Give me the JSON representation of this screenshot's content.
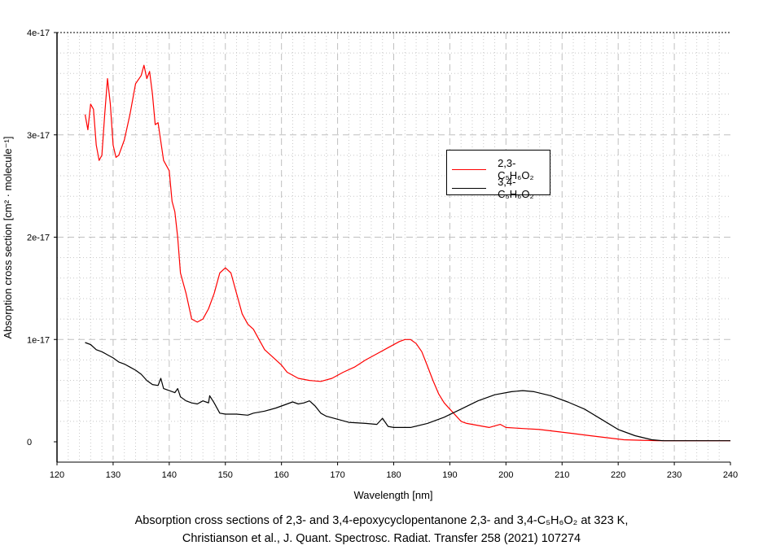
{
  "chart_data": {
    "type": "line",
    "title": "",
    "xlabel": "Wavelength [nm]",
    "ylabel": "Absorption cross section [cm² · molecule⁻¹]",
    "xlim": [
      120,
      240
    ],
    "ylim": [
      0,
      4e-17
    ],
    "y_unit_scale": 1e-17,
    "x_ticks": [
      "120",
      "130",
      "140",
      "150",
      "160",
      "170",
      "180",
      "190",
      "200",
      "210",
      "220",
      "230",
      "240"
    ],
    "y_ticks": [
      "0",
      "1e-17",
      "2e-17",
      "3e-17",
      "4e-17"
    ],
    "grid": true,
    "legend_position": "upper-center-right",
    "series": [
      {
        "name": "2,3-C₅H₆O₂",
        "color": "#ff0000",
        "x": [
          125,
          125.5,
          126,
          126.5,
          127,
          127.5,
          128,
          128.5,
          129,
          129.5,
          130,
          130.5,
          131,
          132,
          133,
          134,
          135,
          135.5,
          136,
          136.5,
          137,
          137.5,
          138,
          139,
          140,
          140.5,
          141,
          141.5,
          142,
          143,
          144,
          145,
          146,
          147,
          148,
          149,
          150,
          151,
          152,
          153,
          154,
          155,
          156,
          157,
          158,
          160,
          161,
          163,
          165,
          167,
          169,
          171,
          173,
          175,
          177,
          179,
          181,
          182,
          183,
          184,
          185,
          186,
          187,
          188,
          189,
          190,
          191,
          192,
          193,
          195,
          197,
          199,
          200,
          203,
          206,
          209,
          212,
          215,
          218,
          221,
          224,
          227,
          230,
          240
        ],
        "y": [
          3.2,
          3.05,
          3.3,
          3.25,
          2.9,
          2.75,
          2.8,
          3.2,
          3.55,
          3.3,
          2.9,
          2.78,
          2.8,
          2.95,
          3.2,
          3.5,
          3.58,
          3.68,
          3.55,
          3.62,
          3.4,
          3.1,
          3.12,
          2.75,
          2.65,
          2.35,
          2.25,
          2.0,
          1.65,
          1.45,
          1.2,
          1.17,
          1.2,
          1.3,
          1.45,
          1.65,
          1.7,
          1.65,
          1.45,
          1.25,
          1.15,
          1.1,
          1.0,
          0.9,
          0.85,
          0.75,
          0.68,
          0.62,
          0.6,
          0.59,
          0.62,
          0.68,
          0.73,
          0.8,
          0.86,
          0.92,
          0.98,
          1.0,
          1.0,
          0.96,
          0.88,
          0.74,
          0.6,
          0.47,
          0.38,
          0.32,
          0.26,
          0.2,
          0.18,
          0.16,
          0.14,
          0.17,
          0.14,
          0.13,
          0.12,
          0.1,
          0.08,
          0.06,
          0.04,
          0.02,
          0.015,
          0.01,
          0.01,
          0.01
        ]
      },
      {
        "name": "3,4-C₅H₆O₂",
        "color": "#000000",
        "x": [
          125,
          126,
          127,
          128,
          129,
          130,
          131,
          132,
          133,
          134,
          135,
          136,
          137,
          138,
          138.5,
          139,
          140,
          141,
          141.5,
          142,
          143,
          144,
          145,
          146,
          147,
          147.2,
          148,
          149,
          150,
          152,
          154,
          155,
          157,
          159,
          161,
          162,
          163,
          164,
          165,
          166,
          167,
          168,
          170,
          172,
          175,
          177,
          178,
          179,
          180,
          183,
          186,
          189,
          192,
          195,
          198,
          201,
          203,
          205,
          208,
          211,
          214,
          217,
          220,
          223,
          226,
          228,
          240
        ],
        "y": [
          0.97,
          0.95,
          0.9,
          0.88,
          0.85,
          0.82,
          0.78,
          0.76,
          0.73,
          0.7,
          0.66,
          0.6,
          0.56,
          0.55,
          0.62,
          0.52,
          0.5,
          0.48,
          0.52,
          0.44,
          0.4,
          0.38,
          0.37,
          0.4,
          0.38,
          0.45,
          0.38,
          0.28,
          0.27,
          0.27,
          0.26,
          0.28,
          0.3,
          0.33,
          0.37,
          0.39,
          0.37,
          0.38,
          0.4,
          0.35,
          0.28,
          0.25,
          0.22,
          0.19,
          0.18,
          0.17,
          0.23,
          0.15,
          0.14,
          0.14,
          0.18,
          0.24,
          0.32,
          0.4,
          0.46,
          0.49,
          0.5,
          0.49,
          0.45,
          0.39,
          0.32,
          0.22,
          0.12,
          0.06,
          0.02,
          0.01,
          0.01
        ]
      }
    ]
  },
  "caption": {
    "line1": "Absorption cross sections of 2,3- and 3,4-epoxycyclopentanone 2,3- and 3,4-C₅H₆O₂ at 323 K,",
    "line2": "Christianson et al., J. Quant. Spectrosc. Radiat. Transfer 258 (2021) 107274"
  }
}
